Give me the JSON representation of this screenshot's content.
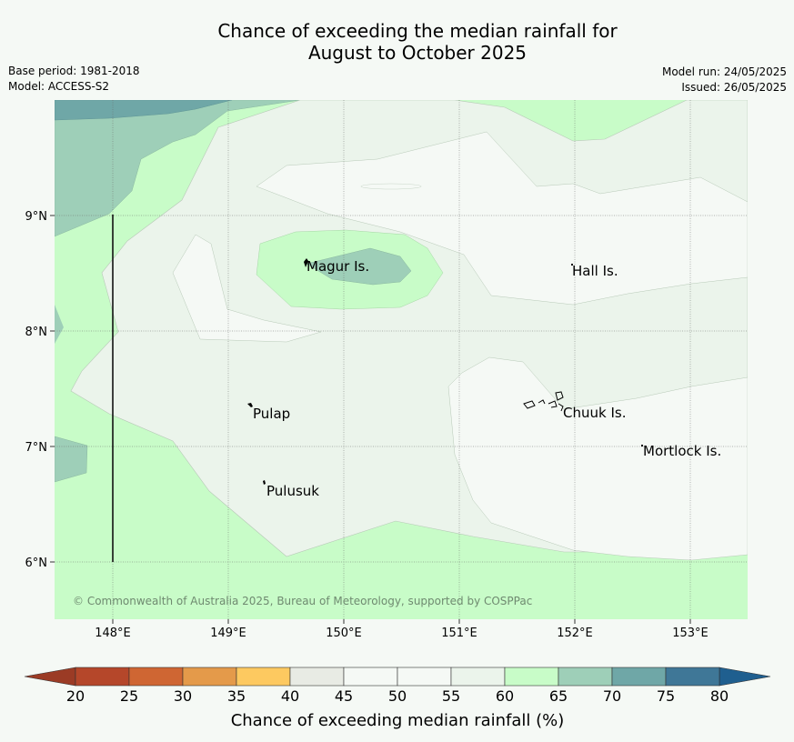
{
  "title": {
    "line1": "Chance of exceeding the median rainfall for",
    "line2": "August to October 2025"
  },
  "meta": {
    "base_period": "Base period: 1981-2018",
    "model": "Model: ACCESS-S2",
    "model_run": "Model run: 24/05/2025",
    "issued": "Issued: 26/05/2025"
  },
  "map": {
    "lat_labels": [
      "9°N",
      "8°N",
      "7°N",
      "6°N"
    ],
    "lon_labels": [
      "148°E",
      "149°E",
      "150°E",
      "151°E",
      "152°E",
      "153°E"
    ],
    "islands": [
      "Magur Is.",
      "Hall Is.",
      "Pulap",
      "Chuuk Is.",
      "Mortlock Is.",
      "Pulusuk"
    ],
    "copyright": "© Commonwealth of Australia 2025, Bureau of Meteorology, supported by COSPPac"
  },
  "colorbar": {
    "ticks": [
      "20",
      "25",
      "30",
      "35",
      "40",
      "45",
      "50",
      "55",
      "60",
      "65",
      "70",
      "75",
      "80"
    ],
    "colors": [
      "#b5472a",
      "#cf6633",
      "#e49a4a",
      "#fdc960",
      "#e8ebe4",
      "#f5f9f5",
      "#f5f9f5",
      "#ebf4eb",
      "#c8fcc8",
      "#9ecfb8",
      "#6fa7a7",
      "#3f7797"
    ],
    "under_color": "#9b3b25",
    "over_color": "#1f5f8f",
    "label": "Chance of exceeding median rainfall (%)"
  }
}
